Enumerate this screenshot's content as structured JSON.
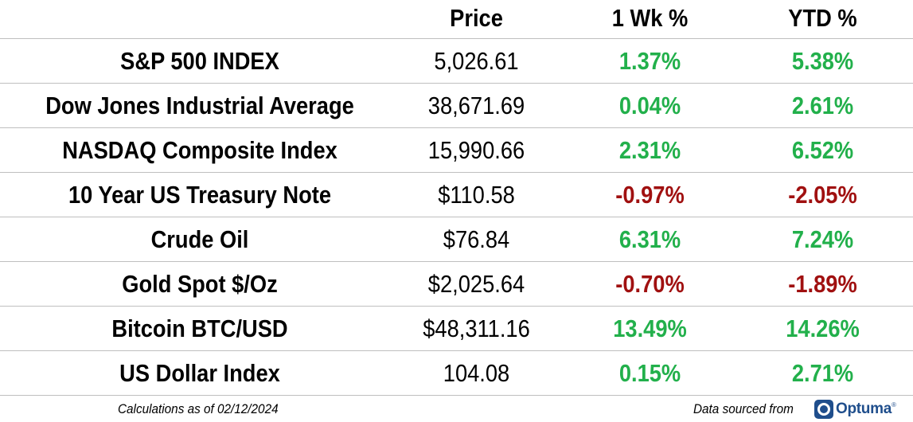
{
  "table": {
    "headers": {
      "name": "",
      "price": "Price",
      "week": "1 Wk %",
      "ytd": "YTD %"
    },
    "rows": [
      {
        "name": "S&P 500 INDEX",
        "price": "5,026.61",
        "week": "1.37%",
        "ytd": "5.38%"
      },
      {
        "name": "Dow Jones Industrial Average",
        "price": "38,671.69",
        "week": "0.04%",
        "ytd": "2.61%"
      },
      {
        "name": "NASDAQ Composite Index",
        "price": "15,990.66",
        "week": "2.31%",
        "ytd": "6.52%"
      },
      {
        "name": "10 Year US Treasury Note",
        "price": "$110.58",
        "week": "-0.97%",
        "ytd": "-2.05%"
      },
      {
        "name": "Crude Oil",
        "price": "$76.84",
        "week": "6.31%",
        "ytd": "7.24%"
      },
      {
        "name": "Gold Spot $/Oz",
        "price": "$2,025.64",
        "week": "-0.70%",
        "ytd": "-1.89%"
      },
      {
        "name": "Bitcoin BTC/USD",
        "price": "$48,311.16",
        "week": "13.49%",
        "ytd": "14.26%"
      },
      {
        "name": "US Dollar Index",
        "price": "104.08",
        "week": "0.15%",
        "ytd": "2.71%"
      }
    ]
  },
  "footer": {
    "note": "Calculations as of 02/12/2024",
    "source": "Data sourced from",
    "logo_text": "Optuma",
    "logo_tm": "®"
  },
  "colors": {
    "positive": "#22b04b",
    "negative": "#a01010",
    "brand": "#1f4e8c",
    "divider": "#bfbfbf"
  },
  "icons": {
    "logo": "optuma-logo-icon"
  }
}
